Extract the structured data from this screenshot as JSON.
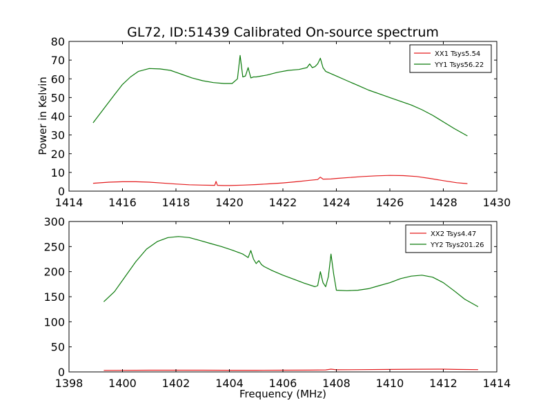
{
  "figure": {
    "title": "GL72, ID:51439 Calibrated On-source spectrum",
    "xlabel": "Frequency (MHz)",
    "ylabel_top": "Power in Kelvin"
  },
  "colors": {
    "xx": "#e31a1c",
    "yy": "#0a7a0a"
  },
  "chart_data": [
    {
      "type": "line",
      "ylabel": "Power in Kelvin",
      "xlim": [
        1414,
        1430
      ],
      "ylim": [
        0,
        80
      ],
      "xticks": [
        1414,
        1416,
        1418,
        1420,
        1422,
        1424,
        1426,
        1428,
        1430
      ],
      "yticks": [
        0,
        10,
        20,
        30,
        40,
        50,
        60,
        70,
        80
      ],
      "legend_position": "top-right",
      "series": [
        {
          "name": "XX1 Tsys5.54",
          "color": "#e31a1c",
          "x": [
            1414.9,
            1415.5,
            1416.0,
            1416.5,
            1417.0,
            1417.5,
            1418.0,
            1418.5,
            1419.0,
            1419.45,
            1419.5,
            1419.55,
            1419.8,
            1420.0,
            1420.5,
            1421.0,
            1421.5,
            1422.0,
            1422.5,
            1423.0,
            1423.3,
            1423.4,
            1423.5,
            1423.8,
            1424.0,
            1424.5,
            1425.0,
            1425.5,
            1426.0,
            1426.5,
            1427.0,
            1427.5,
            1428.0,
            1428.5,
            1428.9
          ],
          "y": [
            4.2,
            4.8,
            5.0,
            5.0,
            4.8,
            4.3,
            3.8,
            3.4,
            3.2,
            3.1,
            5.2,
            3.1,
            3.0,
            3.0,
            3.2,
            3.5,
            3.9,
            4.4,
            5.0,
            5.8,
            6.2,
            7.5,
            6.4,
            6.5,
            6.8,
            7.3,
            7.8,
            8.2,
            8.4,
            8.3,
            7.8,
            6.8,
            5.6,
            4.5,
            4.0
          ]
        },
        {
          "name": "YY1 Tsys56.22",
          "color": "#0a7a0a",
          "x": [
            1414.9,
            1415.3,
            1415.7,
            1416.0,
            1416.3,
            1416.6,
            1417.0,
            1417.4,
            1417.8,
            1418.2,
            1418.6,
            1419.0,
            1419.4,
            1419.8,
            1420.1,
            1420.3,
            1420.4,
            1420.5,
            1420.6,
            1420.7,
            1420.8,
            1420.9,
            1421.0,
            1421.4,
            1421.8,
            1422.2,
            1422.6,
            1422.9,
            1423.0,
            1423.1,
            1423.2,
            1423.3,
            1423.4,
            1423.5,
            1423.6,
            1424.0,
            1424.4,
            1424.8,
            1425.2,
            1425.6,
            1426.0,
            1426.4,
            1426.8,
            1427.2,
            1427.6,
            1428.0,
            1428.4,
            1428.9
          ],
          "y": [
            36.5,
            44.0,
            51.5,
            57.0,
            61.0,
            64.0,
            65.5,
            65.3,
            64.5,
            62.5,
            60.5,
            59.0,
            58.0,
            57.5,
            57.5,
            60.0,
            72.5,
            61.0,
            61.5,
            66.0,
            60.5,
            61.0,
            61.0,
            62.0,
            63.5,
            64.5,
            65.0,
            66.0,
            68.0,
            66.0,
            66.5,
            68.0,
            71.0,
            66.0,
            64.0,
            61.5,
            59.0,
            56.5,
            54.0,
            52.0,
            50.0,
            48.0,
            46.0,
            43.5,
            40.5,
            37.0,
            33.5,
            29.5
          ]
        }
      ]
    },
    {
      "type": "line",
      "xlabel": "Frequency (MHz)",
      "xlim": [
        1398,
        1414
      ],
      "ylim": [
        0,
        300
      ],
      "xticks": [
        1398,
        1400,
        1402,
        1404,
        1406,
        1408,
        1410,
        1412,
        1414
      ],
      "yticks": [
        0,
        50,
        100,
        150,
        200,
        250,
        300
      ],
      "legend_position": "top-right",
      "series": [
        {
          "name": "XX2 Tsys4.47",
          "color": "#e31a1c",
          "x": [
            1399.3,
            1400.0,
            1401.0,
            1402.0,
            1403.0,
            1404.0,
            1405.0,
            1406.0,
            1407.0,
            1407.6,
            1407.8,
            1408.0,
            1409.0,
            1410.0,
            1411.0,
            1412.0,
            1412.5,
            1413.3
          ],
          "y": [
            3.0,
            3.2,
            3.4,
            3.5,
            3.4,
            3.3,
            3.3,
            3.4,
            3.6,
            4.0,
            5.5,
            4.2,
            4.6,
            5.0,
            5.3,
            5.5,
            5.0,
            4.5
          ]
        },
        {
          "name": "YY2 Tsys201.26",
          "color": "#0a7a0a",
          "x": [
            1399.3,
            1399.7,
            1400.1,
            1400.5,
            1400.9,
            1401.3,
            1401.7,
            1402.1,
            1402.5,
            1402.9,
            1403.3,
            1403.7,
            1404.1,
            1404.5,
            1404.7,
            1404.8,
            1404.9,
            1405.0,
            1405.1,
            1405.2,
            1405.3,
            1405.6,
            1406.0,
            1406.4,
            1406.8,
            1407.2,
            1407.3,
            1407.4,
            1407.5,
            1407.6,
            1407.7,
            1407.8,
            1407.9,
            1408.0,
            1408.4,
            1408.8,
            1409.2,
            1409.6,
            1410.0,
            1410.4,
            1410.8,
            1411.2,
            1411.6,
            1412.0,
            1412.4,
            1412.8,
            1413.3
          ],
          "y": [
            140.0,
            160.0,
            190.0,
            220.0,
            245.0,
            260.0,
            268.0,
            270.0,
            268.0,
            262.0,
            256.0,
            250.0,
            243.0,
            235.0,
            228.0,
            242.0,
            225.0,
            216.0,
            222.0,
            214.0,
            210.0,
            202.0,
            193.0,
            185.0,
            177.0,
            170.0,
            172.0,
            200.0,
            178.0,
            170.0,
            190.0,
            235.0,
            195.0,
            163.0,
            162.0,
            163.0,
            166.0,
            172.0,
            178.0,
            186.0,
            191.0,
            193.0,
            189.0,
            178.0,
            162.0,
            145.0,
            130.0
          ]
        }
      ]
    }
  ]
}
